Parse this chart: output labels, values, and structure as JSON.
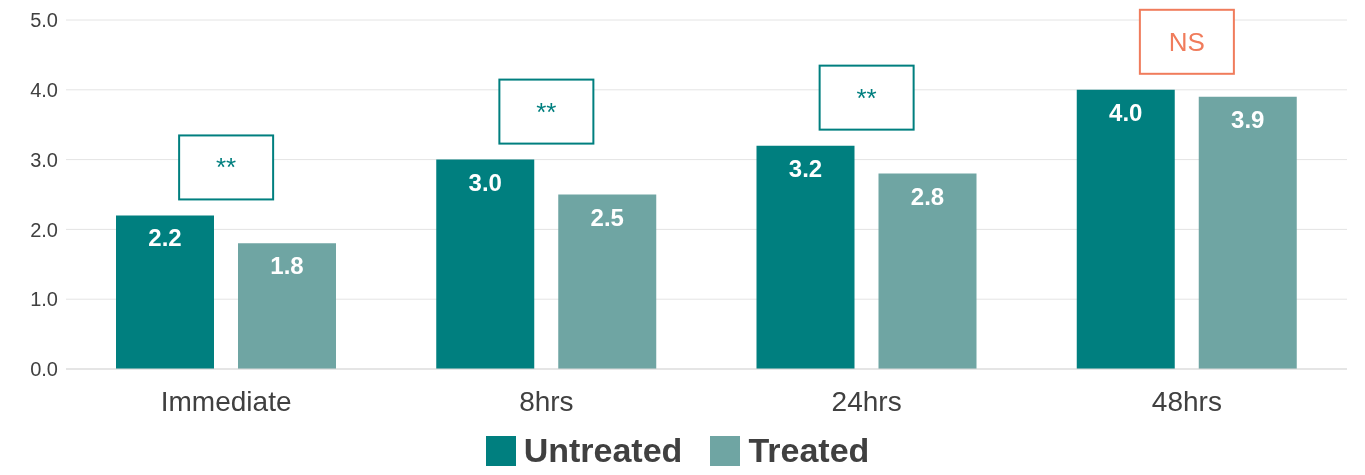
{
  "chart_data": {
    "type": "bar",
    "categories": [
      "Immediate",
      "8hrs",
      "24hrs",
      "48hrs"
    ],
    "series": [
      {
        "name": "Untreated",
        "color": "#007f7f",
        "values": [
          2.2,
          3.0,
          3.2,
          4.0
        ],
        "value_labels": [
          "2.2",
          "3.0",
          "3.2",
          "4.0"
        ]
      },
      {
        "name": "Treated",
        "color": "#6fa5a3",
        "values": [
          1.8,
          2.5,
          2.8,
          3.9
        ],
        "value_labels": [
          "1.8",
          "2.5",
          "2.8",
          "3.9"
        ]
      }
    ],
    "ylim": [
      0,
      5
    ],
    "yticks": [
      {
        "value": 0,
        "label": "0.0"
      },
      {
        "value": 1,
        "label": "1.0"
      },
      {
        "value": 2,
        "label": "2.0"
      },
      {
        "value": 3,
        "label": "3.0"
      },
      {
        "value": 4,
        "label": "4.0"
      },
      {
        "value": 5,
        "label": "5.0"
      }
    ],
    "grid": "y",
    "legend": "bottom",
    "annotations": [
      "**",
      "**",
      "**",
      "NS"
    ]
  }
}
